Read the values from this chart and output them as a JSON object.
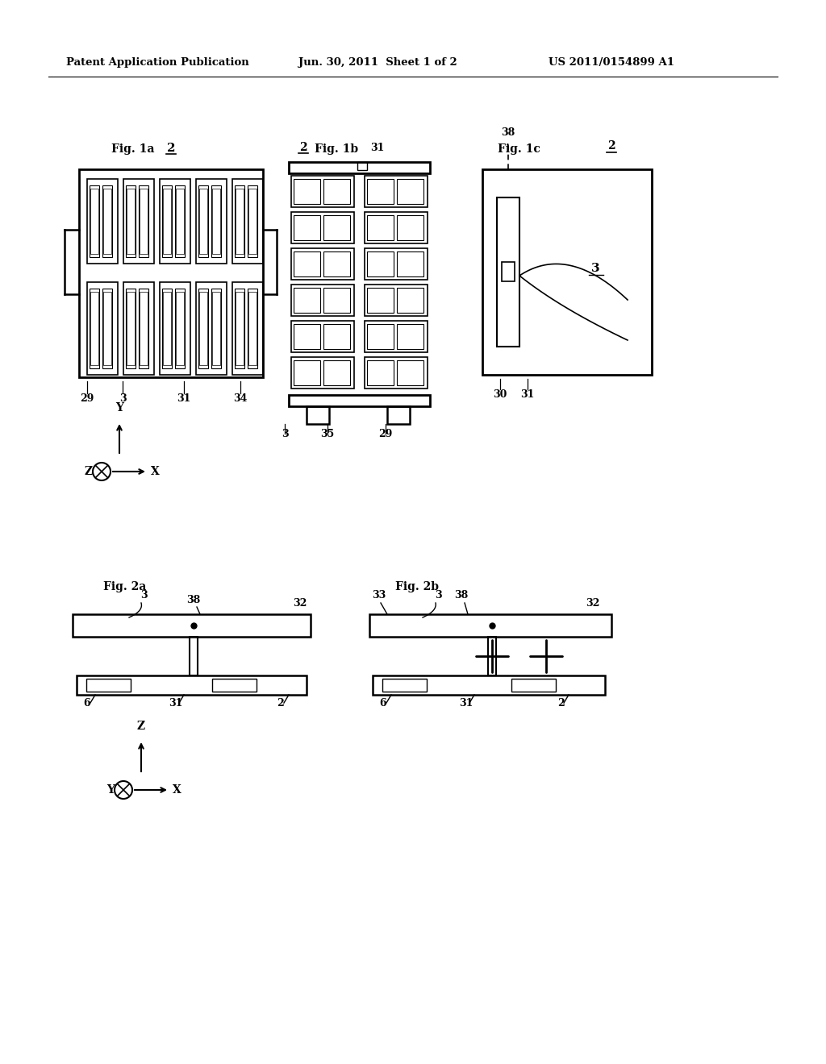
{
  "background_color": "#ffffff",
  "header_text": "Patent Application Publication",
  "header_date": "Jun. 30, 2011  Sheet 1 of 2",
  "header_patent": "US 2011/0154899 A1",
  "fig1a_label": "Fig. 1a",
  "fig1b_label": "Fig. 1b",
  "fig1c_label": "Fig. 1c",
  "fig2a_label": "Fig. 2a",
  "fig2b_label": "Fig. 2b"
}
